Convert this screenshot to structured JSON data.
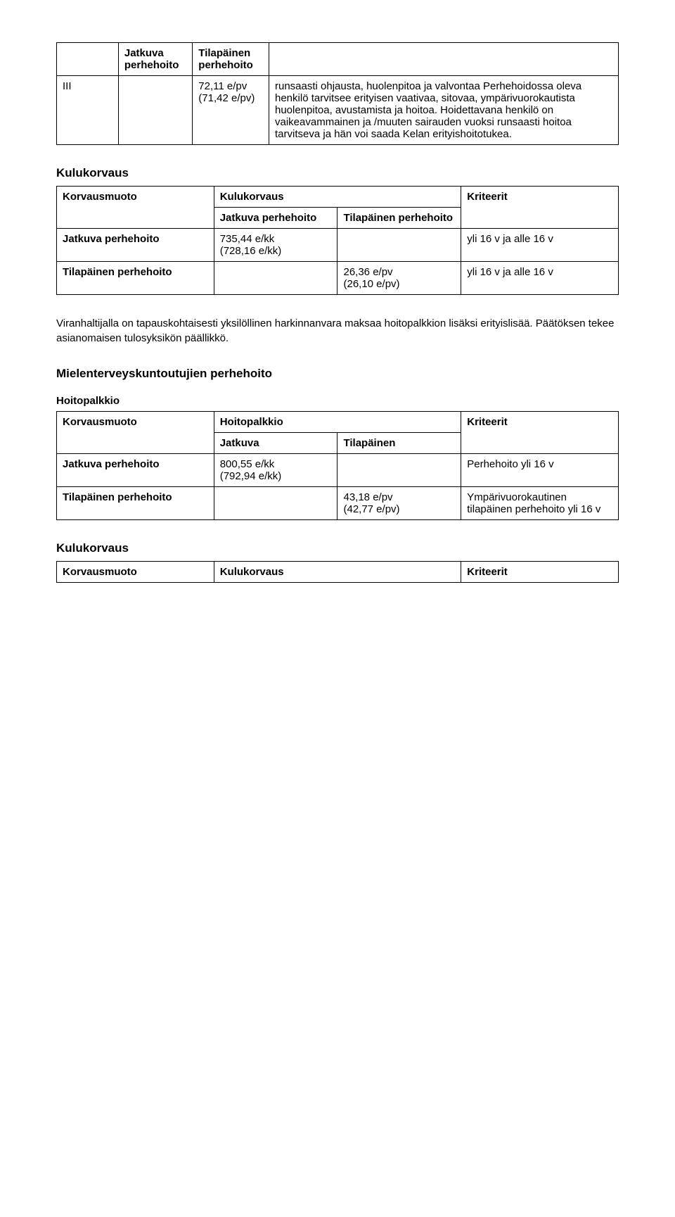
{
  "table1": {
    "headers": [
      "",
      "Jatkuva perhehoito",
      "Tilapäinen perhehoito",
      ""
    ],
    "row": {
      "c0": "III",
      "c1": "",
      "c2_line1": "72,11 e/pv",
      "c2_line2": "(71,42 e/pv)",
      "c3": "runsaasti ohjausta, huolenpitoa ja valvontaa Perhehoidossa oleva henkilö tarvitsee erityisen vaativaa, sitovaa, ympärivuorokautista huolenpitoa, avustamista ja hoitoa. Hoidettavana henkilö on vaikeavammainen ja /muuten sairauden vuoksi runsaasti hoitoa tarvitseva ja hän voi saada Kelan erityishoitotukea."
    }
  },
  "sec_kulu1": {
    "heading": "Kulukorvaus",
    "h_korvausmuoto": "Korvausmuoto",
    "h_kulukorvaus": "Kulukorvaus",
    "h_kriteerit": "Kriteerit",
    "h_jatkuva": "Jatkuva perhehoito",
    "h_tilapainen": "Tilapäinen perhehoito",
    "row1": {
      "c0": "Jatkuva perhehoito",
      "c1_l1": "735,44 e/kk",
      "c1_l2": "(728,16 e/kk)",
      "c3": "yli 16 v ja alle 16 v"
    },
    "row2": {
      "c0": "Tilapäinen perhehoito",
      "c2_l1": "26,36 e/pv",
      "c2_l2": "(26,10 e/pv)",
      "c3": "yli 16 v ja alle 16 v"
    }
  },
  "para1": "Viranhaltijalla on tapauskohtaisesti yksilöllinen harkinnanvara maksaa hoitopalkkion lisäksi erityislisää. Päätöksen tekee asianomaisen tulosyksikön päällikkö.",
  "sec_mielen": {
    "heading": "Mielenterveyskuntoutujien perhehoito",
    "sub": "Hoitopalkkio",
    "h_korvausmuoto": "Korvausmuoto",
    "h_hoitopalkkio": "Hoitopalkkio",
    "h_kriteerit": "Kriteerit",
    "h_jatkuva": "Jatkuva",
    "h_tilapainen": "Tilapäinen",
    "row1": {
      "c0": "Jatkuva perhehoito",
      "c1_l1": "800,55 e/kk",
      "c1_l2": "(792,94 e/kk)",
      "c3": "Perhehoito yli 16 v"
    },
    "row2": {
      "c0": "Tilapäinen perhehoito",
      "c2_l1": "43,18 e/pv",
      "c2_l2": "(42,77 e/pv)",
      "c3": "Ympärivuorokautinen tilapäinen perhehoito yli 16 v"
    }
  },
  "sec_kulu2": {
    "heading": "Kulukorvaus",
    "h_korvausmuoto": "Korvausmuoto",
    "h_kulukorvaus": "Kulukorvaus",
    "h_kriteerit": "Kriteerit"
  }
}
